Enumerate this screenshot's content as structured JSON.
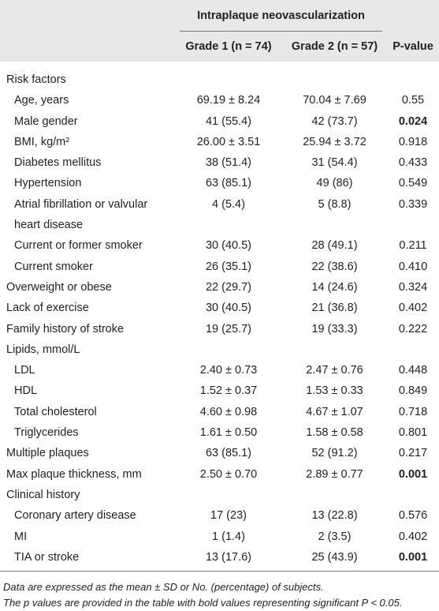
{
  "table": {
    "header": {
      "group": "Intraplaque neovascularization",
      "columns": [
        "Grade 1 (n = 74)",
        "Grade 2 (n = 57)",
        "P-value"
      ]
    },
    "rows": [
      {
        "label": "Risk factors"
      },
      {
        "label": "Age, years",
        "indent": true,
        "values": [
          "69.19 ± 8.24",
          "70.04 ± 7.69",
          "0.55"
        ]
      },
      {
        "label": "Male gender",
        "indent": true,
        "values": [
          "41 (55.4)",
          "42 (73.7)",
          "0.024"
        ],
        "bold": true
      },
      {
        "label": "BMI, kg/m²",
        "indent": true,
        "values": [
          "26.00 ± 3.51",
          "25.94 ± 3.72",
          "0.918"
        ]
      },
      {
        "label": "Diabetes mellitus",
        "indent": true,
        "values": [
          "38 (51.4)",
          "31 (54.4)",
          "0.433"
        ]
      },
      {
        "label": "Hypertension",
        "indent": true,
        "values": [
          "63 (85.1)",
          "49 (86)",
          "0.549"
        ]
      },
      {
        "label": "Atrial fibrillation or valvular heart disease",
        "indent": true,
        "values": [
          "4 (5.4)",
          "5 (8.8)",
          "0.339"
        ]
      },
      {
        "label": "Current or former smoker",
        "indent": true,
        "values": [
          "30 (40.5)",
          "28 (49.1)",
          "0.211"
        ]
      },
      {
        "label": "Current smoker",
        "indent": true,
        "values": [
          "26 (35.1)",
          "22 (38.6)",
          "0.410"
        ]
      },
      {
        "label": "Overweight or obese",
        "values": [
          "22 (29.7)",
          "14 (24.6)",
          "0.324"
        ]
      },
      {
        "label": "Lack of exercise",
        "values": [
          "30 (40.5)",
          "21 (36.8)",
          "0.402"
        ]
      },
      {
        "label": "Family history of stroke",
        "values": [
          "19 (25.7)",
          "19 (33.3)",
          "0.222"
        ]
      },
      {
        "label": "Lipids, mmol/L"
      },
      {
        "label": "LDL",
        "indent": true,
        "values": [
          "2.40 ± 0.73",
          "2.47 ± 0.76",
          "0.448"
        ]
      },
      {
        "label": "HDL",
        "indent": true,
        "values": [
          "1.52 ± 0.37",
          "1.53 ± 0.33",
          "0.849"
        ]
      },
      {
        "label": "Total cholesterol",
        "indent": true,
        "values": [
          "4.60 ± 0.98",
          "4.67 ± 1.07",
          "0.718"
        ]
      },
      {
        "label": "Triglycerides",
        "indent": true,
        "values": [
          "1.61 ± 0.50",
          "1.58 ± 0.58",
          "0.801"
        ]
      },
      {
        "label": "Multiple plaques",
        "values": [
          "63 (85.1)",
          "52 (91.2)",
          "0.217"
        ]
      },
      {
        "label": "Max plaque thickness, mm",
        "values": [
          "2.50 ± 0.70",
          "2.89 ± 0.77",
          "0.001"
        ],
        "bold": true
      },
      {
        "label": "Clinical history"
      },
      {
        "label": "Coronary artery disease",
        "indent": true,
        "values": [
          "17 (23)",
          "13 (22.8)",
          "0.576"
        ]
      },
      {
        "label": "MI",
        "indent": true,
        "values": [
          "1 (1.4)",
          "2 (3.5)",
          "0.402"
        ]
      },
      {
        "label": "TIA or stroke",
        "indent": true,
        "values": [
          "13 (17.6)",
          "25 (43.9)",
          "0.001"
        ],
        "bold": true
      }
    ],
    "footnotes": [
      "Data are expressed as the mean ± SD or No. (percentage) of subjects.",
      "The p values are provided in the table with bold values representing significant P < 0.05."
    ]
  }
}
